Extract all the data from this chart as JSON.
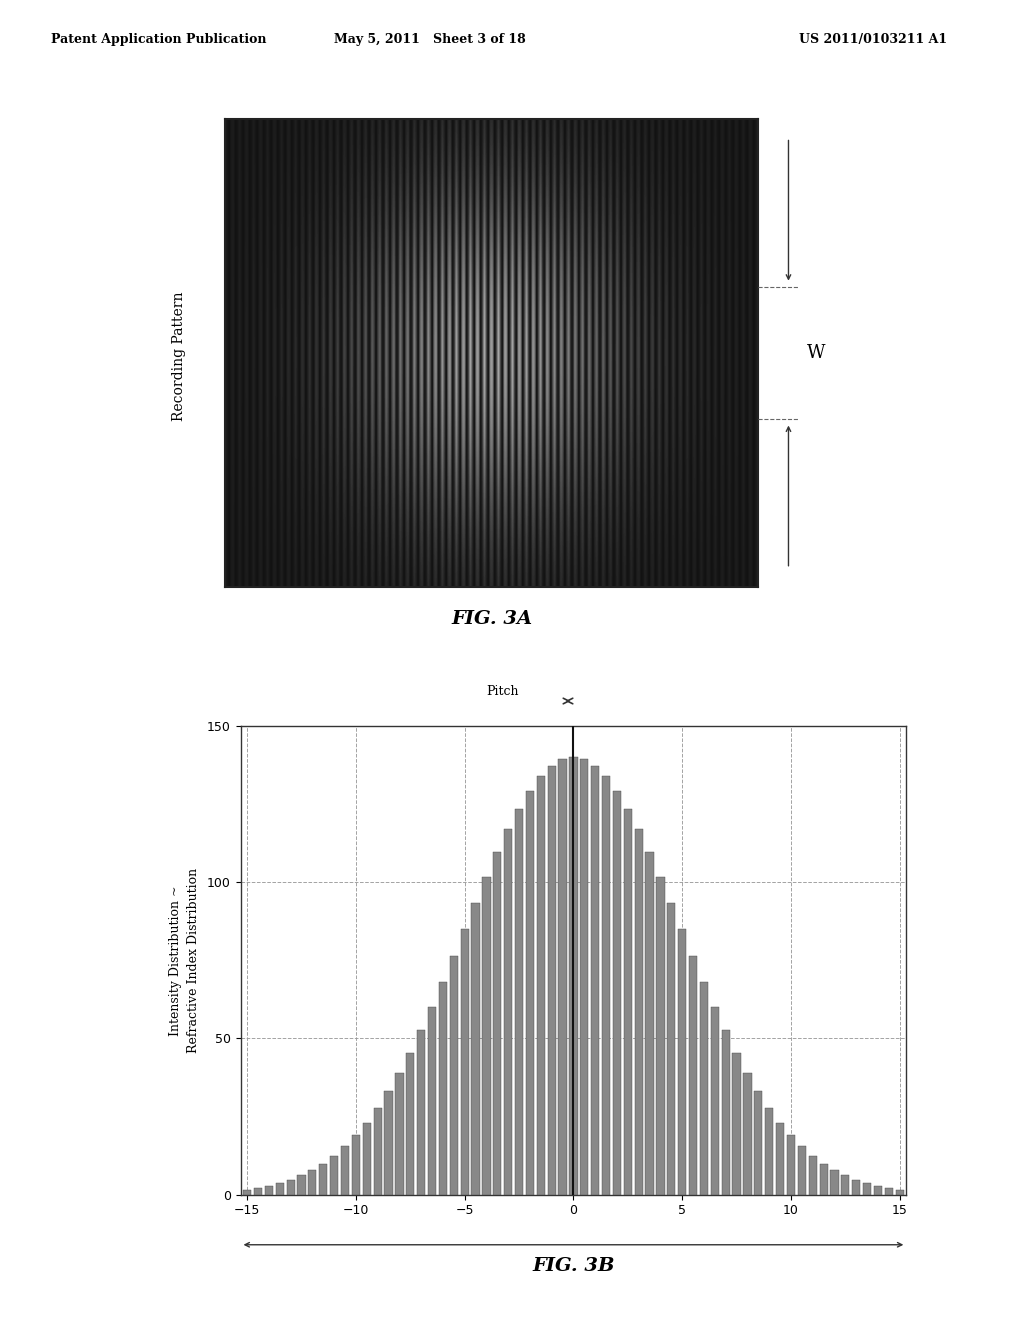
{
  "header_left": "Patent Application Publication",
  "header_mid": "May 5, 2011   Sheet 3 of 18",
  "header_right": "US 2011/0103211 A1",
  "fig3a_label": "FIG. 3A",
  "fig3b_label": "FIG. 3B",
  "recording_pattern_label": "Recording Pattern",
  "ylabel_top": "W",
  "pitch_label": "Pitch",
  "ylabel_bottom": "Intensity Distribution ~\nRefractive Index Distribution",
  "xlim": [
    -15,
    15
  ],
  "ylim": [
    0,
    150
  ],
  "yticks": [
    0,
    50,
    100,
    150
  ],
  "xticks": [
    -15,
    -10,
    -5,
    0,
    5,
    10,
    15
  ],
  "pitch": 0.5,
  "gaussian_sigma": 5.0,
  "peak_amplitude": 140,
  "background_color": "#ffffff",
  "bar_color": "#888888",
  "bar_edge_color": "#444444",
  "grid_color": "#999999",
  "line_color": "#333333"
}
